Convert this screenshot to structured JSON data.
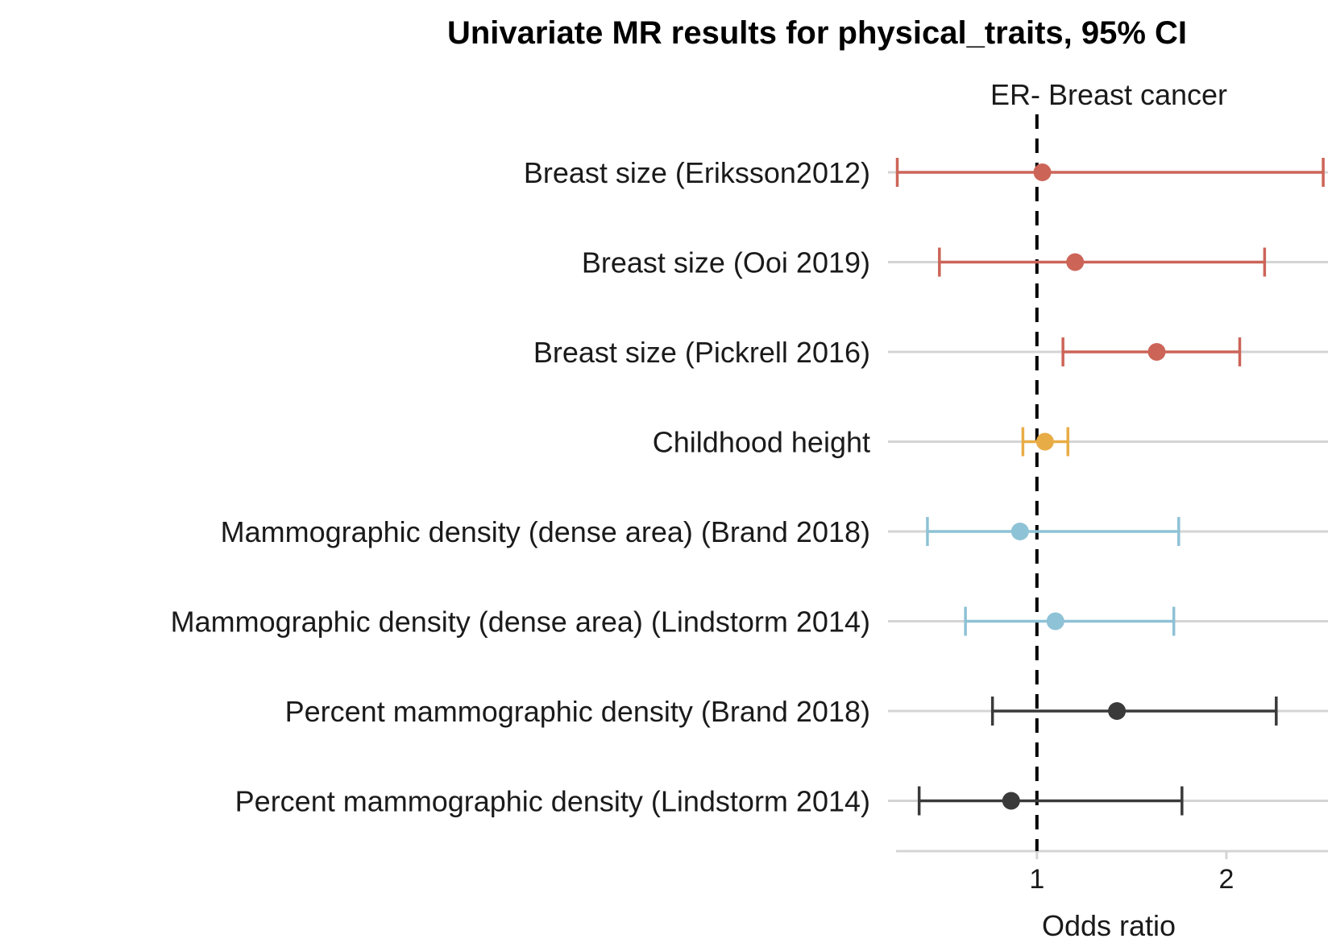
{
  "chart_data": {
    "type": "forest",
    "title": "Univariate MR results for physical_traits, 95% CI",
    "facet_label": "ER- Breast cancer",
    "xlabel": "Odds ratio",
    "x_scale": "log",
    "xlim": [
      0.58,
      2.9
    ],
    "x_ticks": [
      1,
      2
    ],
    "x_tick_labels": [
      "1",
      "2"
    ],
    "reference_line": 1,
    "grid": "horizontal",
    "series": [
      {
        "name": "Breast size (Eriksson2012)",
        "or": 1.02,
        "lower": 0.6,
        "upper": 2.85,
        "color": "#cc6558"
      },
      {
        "name": "Breast size (Ooi 2019)",
        "or": 1.15,
        "lower": 0.7,
        "upper": 2.3,
        "color": "#cc6558"
      },
      {
        "name": "Breast size (Pickrell 2016)",
        "or": 1.55,
        "lower": 1.1,
        "upper": 2.1,
        "color": "#cc6558"
      },
      {
        "name": "Childhood height",
        "or": 1.03,
        "lower": 0.95,
        "upper": 1.12,
        "color": "#e8ac46"
      },
      {
        "name": "Mammographic density (dense area) (Brand 2018)",
        "or": 0.94,
        "lower": 0.67,
        "upper": 1.68,
        "color": "#8ec2d6"
      },
      {
        "name": "Mammographic density (dense area) (Lindstorm 2014)",
        "or": 1.07,
        "lower": 0.77,
        "upper": 1.65,
        "color": "#8ec2d6"
      },
      {
        "name": "Percent mammographic density  (Brand 2018)",
        "or": 1.34,
        "lower": 0.85,
        "upper": 2.4,
        "color": "#3a3a3a"
      },
      {
        "name": "Percent mammographic density (Lindstorm 2014)",
        "or": 0.91,
        "lower": 0.65,
        "upper": 1.7,
        "color": "#3a3a3a"
      }
    ]
  }
}
